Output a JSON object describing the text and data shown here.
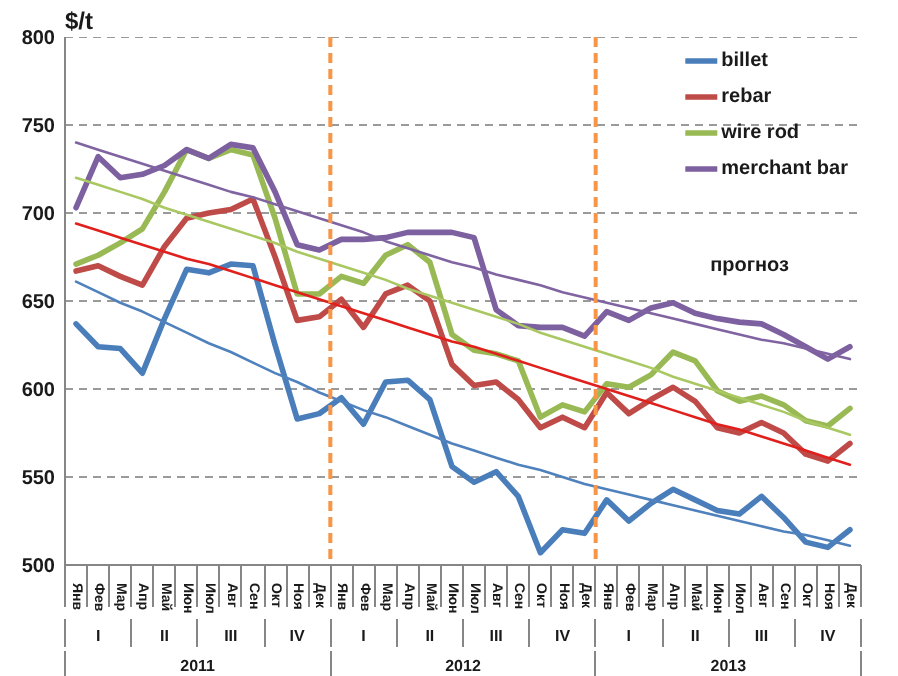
{
  "chart_data": {
    "type": "line",
    "ylabel": "$/t",
    "categories": [
      "Янв",
      "Фев",
      "Мар",
      "Апр",
      "Май",
      "Июн",
      "Июл",
      "Авг",
      "Сен",
      "Окт",
      "Ноя",
      "Дек",
      "Янв",
      "Фев",
      "Мар",
      "Апр",
      "Май",
      "Июн",
      "Июл",
      "Авг",
      "Сен",
      "Окт",
      "Ноя",
      "Дек",
      "Янв",
      "Фев",
      "Мар",
      "Апр",
      "Май",
      "Июн",
      "Июл",
      "Авг",
      "Сен",
      "Окт",
      "Ноя",
      "Дек"
    ],
    "ylim": [
      500,
      800
    ],
    "yticks": [
      500,
      550,
      600,
      650,
      700,
      750,
      800
    ],
    "grid": "y",
    "legend": "top right",
    "series": [
      {
        "name": "billet",
        "color": "#4a7ebb",
        "values": [
          637,
          624,
          623,
          609,
          640,
          668,
          666,
          671,
          670,
          625,
          583,
          586,
          595,
          580,
          604,
          605,
          594,
          556,
          547,
          553,
          539,
          507,
          520,
          518,
          537,
          525,
          535,
          543,
          537,
          531,
          529,
          539,
          527,
          513,
          510,
          520
        ]
      },
      {
        "name": "rebar",
        "color": "#be4b48",
        "values": [
          667,
          670,
          664,
          659,
          681,
          697,
          700,
          702,
          708,
          675,
          639,
          641,
          651,
          635,
          654,
          659,
          650,
          614,
          602,
          604,
          594,
          578,
          584,
          578,
          598,
          586,
          594,
          601,
          593,
          578,
          575,
          581,
          575,
          563,
          559,
          569
        ]
      },
      {
        "name": "wire rod",
        "color": "#98b954",
        "values": [
          671,
          676,
          683,
          691,
          712,
          736,
          731,
          736,
          733,
          697,
          654,
          654,
          664,
          660,
          676,
          682,
          672,
          631,
          622,
          620,
          616,
          584,
          591,
          587,
          603,
          601,
          608,
          621,
          616,
          599,
          593,
          596,
          591,
          582,
          579,
          589
        ]
      },
      {
        "name": "merchant bar",
        "color": "#7d60a0",
        "values": [
          703,
          732,
          720,
          722,
          727,
          736,
          731,
          739,
          737,
          712,
          682,
          679,
          685,
          685,
          686,
          689,
          689,
          689,
          686,
          645,
          636,
          635,
          635,
          630,
          644,
          639,
          646,
          649,
          643,
          640,
          638,
          637,
          631,
          624,
          617,
          624
        ]
      },
      {
        "type": "line",
        "color": "#4f81bd",
        "values": [
          661,
          655,
          649,
          644,
          638,
          632,
          626,
          621,
          615,
          609,
          604,
          598,
          593,
          588,
          584,
          579,
          574,
          569,
          565,
          561,
          557,
          554,
          550,
          546,
          543,
          540,
          537,
          534,
          531,
          528,
          525,
          522,
          519,
          517,
          514,
          511
        ]
      },
      {
        "type": "line",
        "color": "#e0201c",
        "values": [
          694,
          690,
          686,
          682,
          678,
          674,
          671,
          667,
          663,
          659,
          655,
          651,
          647,
          643,
          639,
          635,
          631,
          627,
          624,
          620,
          616,
          612,
          608,
          604,
          600,
          596,
          592,
          588,
          584,
          580,
          577,
          573,
          569,
          565,
          561,
          557
        ]
      },
      {
        "type": "line",
        "color": "#a9c862",
        "values": [
          720,
          716,
          712,
          708,
          703,
          699,
          695,
          691,
          687,
          683,
          678,
          674,
          670,
          666,
          662,
          657,
          653,
          649,
          645,
          641,
          637,
          632,
          628,
          624,
          620,
          616,
          612,
          607,
          603,
          599,
          595,
          591,
          587,
          582,
          578,
          574
        ]
      },
      {
        "type": "line",
        "color": "#8064a2",
        "values": [
          740,
          736,
          732,
          728,
          724,
          720,
          716,
          712,
          709,
          705,
          701,
          697,
          693,
          689,
          684,
          680,
          676,
          672,
          669,
          665,
          662,
          659,
          655,
          652,
          649,
          646,
          643,
          640,
          637,
          634,
          631,
          628,
          626,
          623,
          620,
          617
        ]
      }
    ],
    "annotations": [
      "I",
      "II",
      "III",
      "IV",
      "I",
      "II",
      "III",
      "IV",
      "I",
      "II",
      "III",
      "IV",
      "2011",
      "2012",
      "2013",
      {
        "text": "прогноз"
      }
    ]
  }
}
